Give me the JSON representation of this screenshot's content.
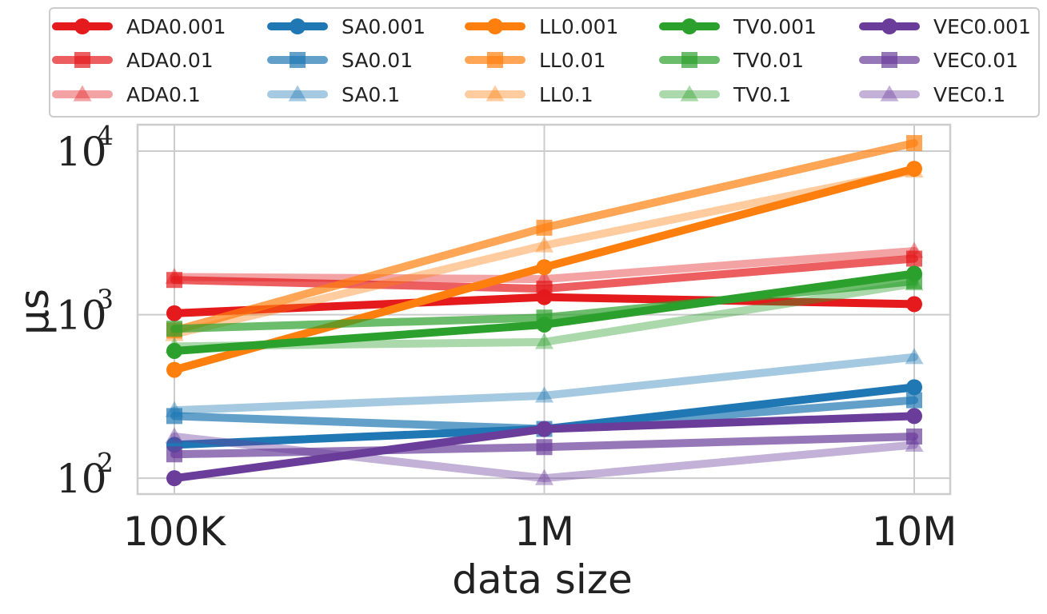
{
  "chart_data": {
    "type": "line",
    "xlabel": "data size",
    "ylabel": "µs",
    "y_scale": "log",
    "ylim": [
      80,
      14500
    ],
    "grid": true,
    "legend_placement": "top (outside plot), 5 columns",
    "categories": [
      "100K",
      "1M",
      "10M"
    ],
    "y_ticks": [
      {
        "value": 100,
        "base": "10",
        "exp": "2"
      },
      {
        "value": 1000,
        "base": "10",
        "exp": "3"
      },
      {
        "value": 10000,
        "base": "10",
        "exp": "4"
      }
    ],
    "series": [
      {
        "name": "ADA0.001",
        "color": "#e41a1c",
        "marker": "circle",
        "alpha": 1.0,
        "values": [
          1020,
          1280,
          1160
        ]
      },
      {
        "name": "ADA0.01",
        "color": "#e41a1c",
        "marker": "square",
        "alpha": 0.7,
        "values": [
          1630,
          1440,
          2200
        ]
      },
      {
        "name": "ADA0.1",
        "color": "#e41a1c",
        "marker": "triangle",
        "alpha": 0.4,
        "values": [
          1700,
          1650,
          2450
        ]
      },
      {
        "name": "SA0.001",
        "color": "#1f77b4",
        "marker": "circle",
        "alpha": 1.0,
        "values": [
          160,
          200,
          360
        ]
      },
      {
        "name": "SA0.01",
        "color": "#1f77b4",
        "marker": "square",
        "alpha": 0.7,
        "values": [
          240,
          200,
          300
        ]
      },
      {
        "name": "SA0.1",
        "color": "#1f77b4",
        "marker": "triangle",
        "alpha": 0.4,
        "values": [
          260,
          320,
          550
        ]
      },
      {
        "name": "LL0.001",
        "color": "#ff7f0e",
        "marker": "circle",
        "alpha": 1.0,
        "values": [
          460,
          1950,
          7800
        ]
      },
      {
        "name": "LL0.01",
        "color": "#ff7f0e",
        "marker": "square",
        "alpha": 0.7,
        "values": [
          800,
          3400,
          11200
        ]
      },
      {
        "name": "LL0.1",
        "color": "#ff7f0e",
        "marker": "triangle",
        "alpha": 0.4,
        "values": [
          760,
          2650,
          7600
        ]
      },
      {
        "name": "TV0.001",
        "color": "#2ca02c",
        "marker": "circle",
        "alpha": 1.0,
        "values": [
          600,
          870,
          1780
        ]
      },
      {
        "name": "TV0.01",
        "color": "#2ca02c",
        "marker": "square",
        "alpha": 0.7,
        "values": [
          820,
          960,
          1600
        ]
      },
      {
        "name": "TV0.1",
        "color": "#2ca02c",
        "marker": "triangle",
        "alpha": 0.4,
        "values": [
          640,
          680,
          1550
        ]
      },
      {
        "name": "VEC0.001",
        "color": "#6a3d9a",
        "marker": "circle",
        "alpha": 1.0,
        "values": [
          100,
          200,
          240
        ]
      },
      {
        "name": "VEC0.01",
        "color": "#6a3d9a",
        "marker": "square",
        "alpha": 0.7,
        "values": [
          140,
          155,
          180
        ]
      },
      {
        "name": "VEC0.1",
        "color": "#6a3d9a",
        "marker": "triangle",
        "alpha": 0.4,
        "values": [
          180,
          100,
          160
        ]
      }
    ]
  }
}
